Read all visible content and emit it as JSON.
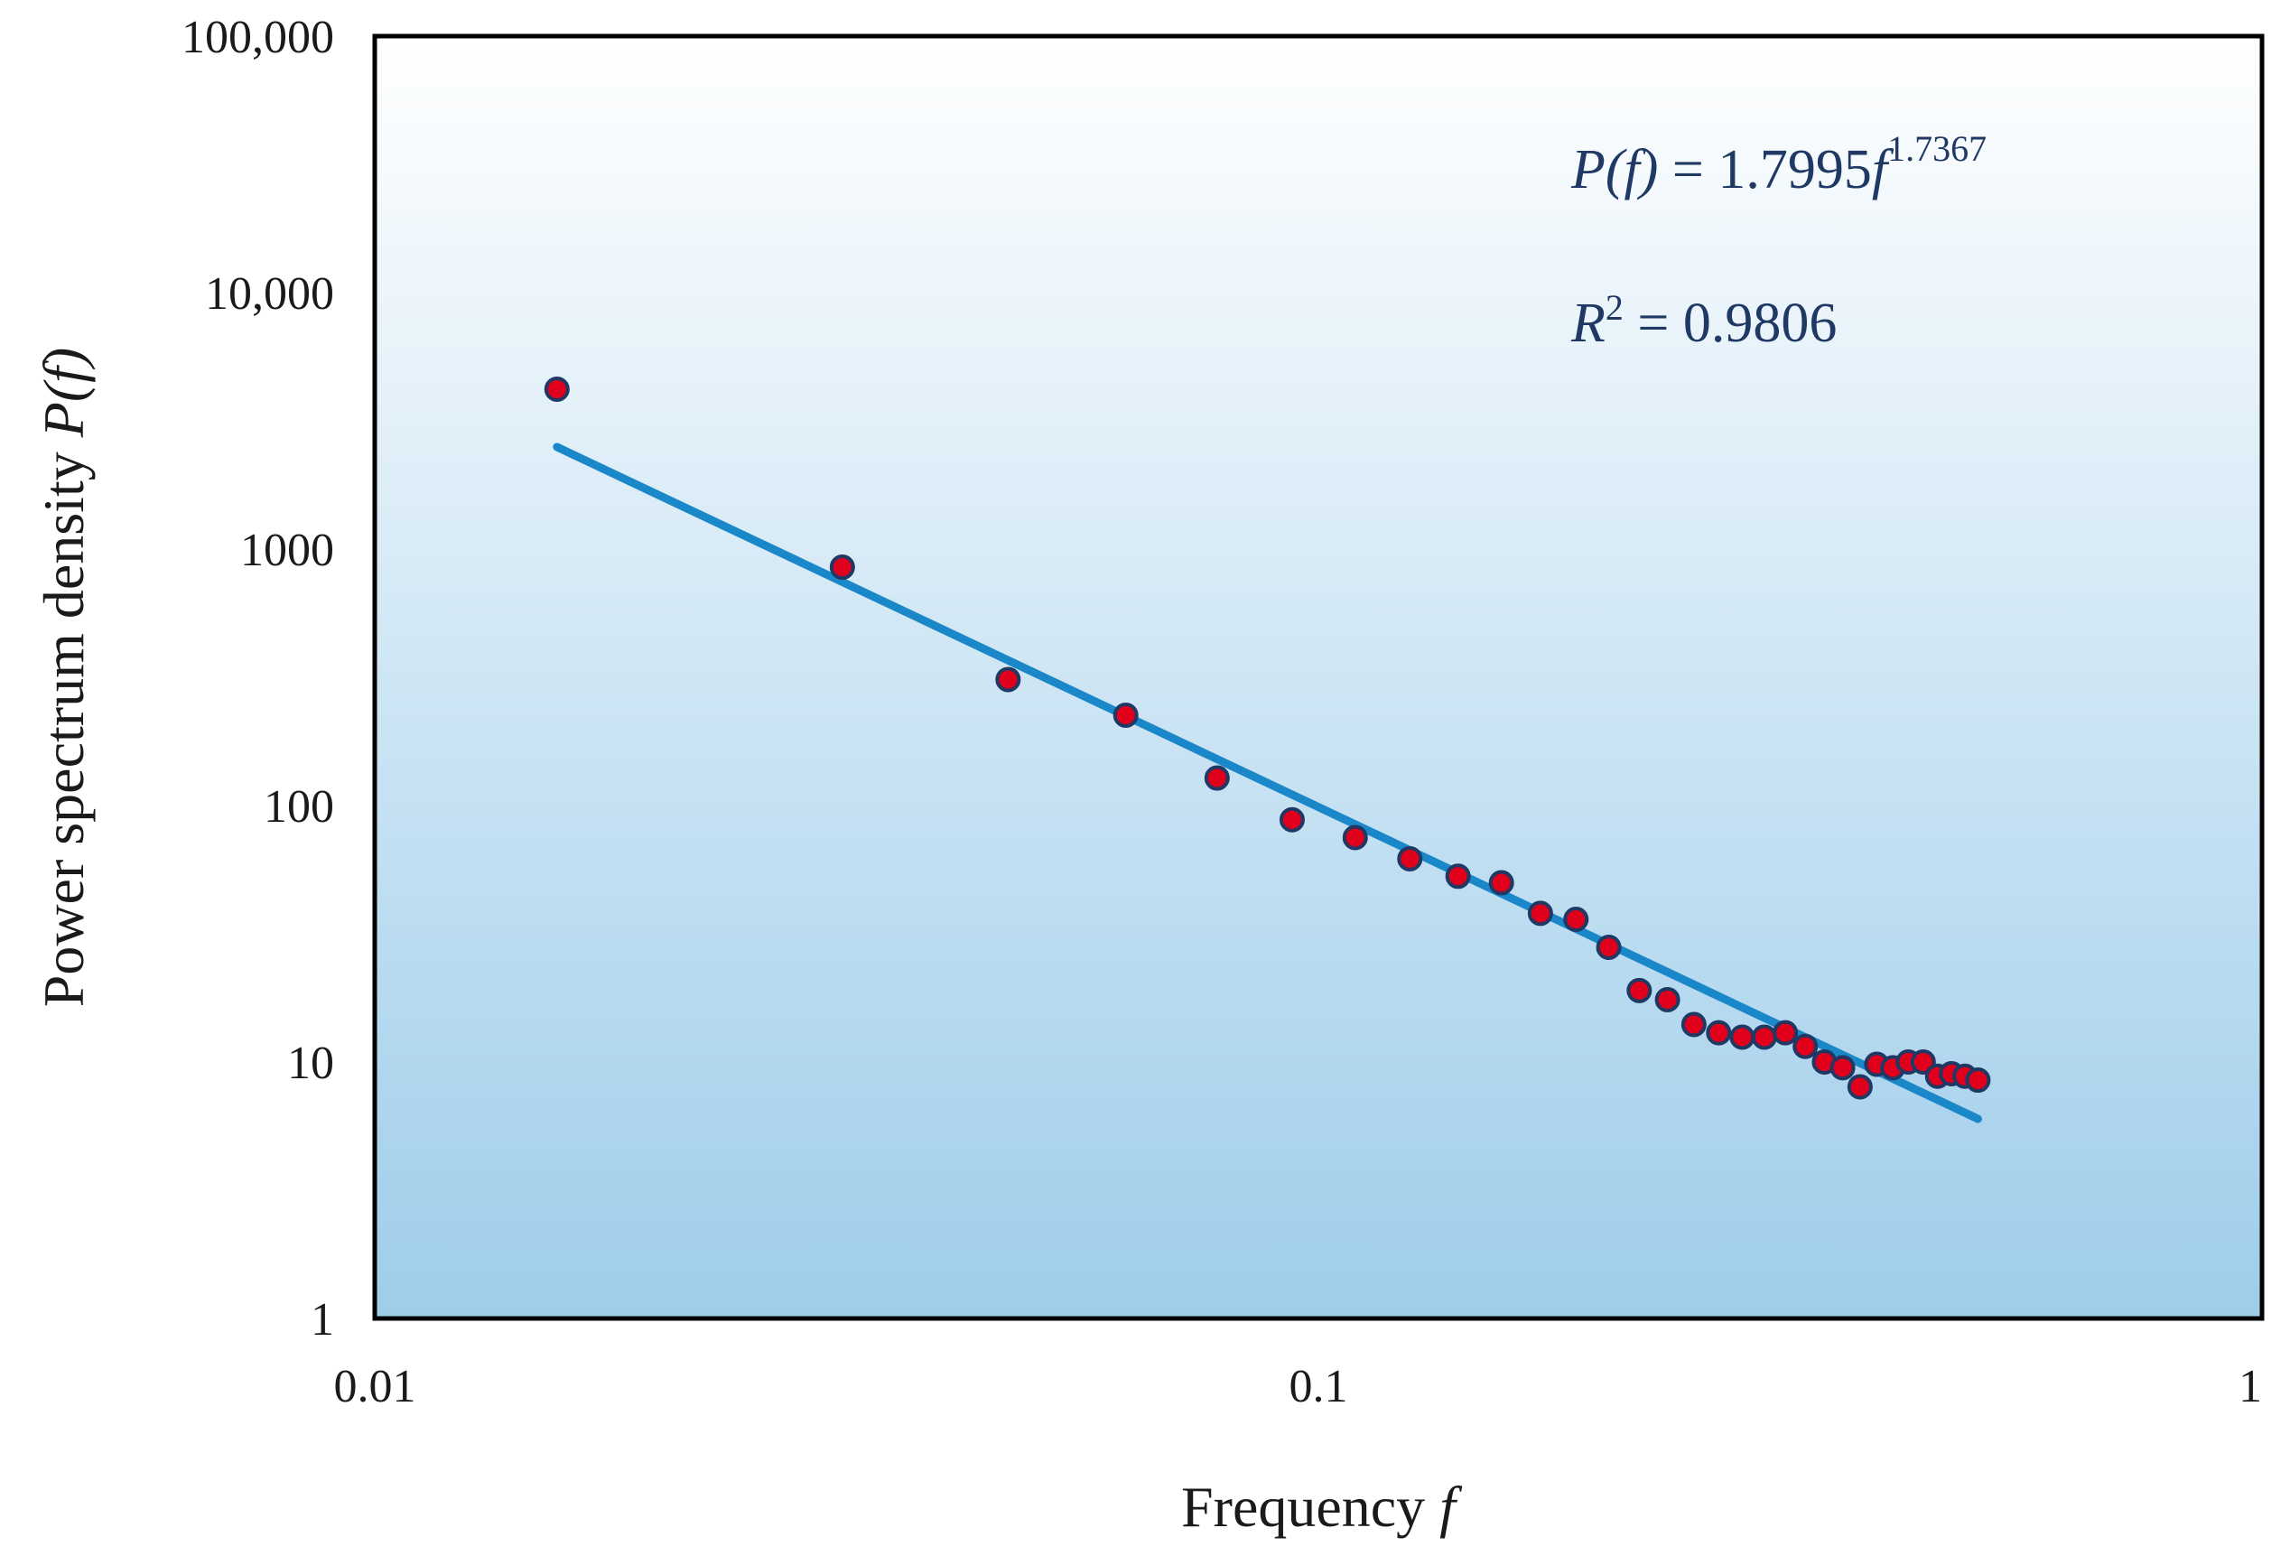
{
  "chart_data": {
    "type": "scatter",
    "x_scale": "log",
    "y_scale": "log",
    "xlim": [
      0.01,
      1
    ],
    "ylim": [
      1,
      100000
    ],
    "x_ticks": [
      {
        "value": 0.01,
        "label": "0.01"
      },
      {
        "value": 0.1,
        "label": "0.1"
      },
      {
        "value": 1,
        "label": "1"
      }
    ],
    "y_ticks": [
      {
        "value": 1,
        "label": "1"
      },
      {
        "value": 10,
        "label": "10"
      },
      {
        "value": 100,
        "label": "100"
      },
      {
        "value": 1000,
        "label": "1000"
      },
      {
        "value": 10000,
        "label": "10,000"
      },
      {
        "value": 100000,
        "label": "100,000"
      }
    ],
    "xlabel": {
      "text": "Frequency ",
      "italic": "f"
    },
    "ylabel": {
      "text": "Power spectrum density ",
      "italic": "P(f)"
    },
    "grid": false,
    "background": {
      "top_color": "#ffffff",
      "bottom_color": "#9ecdea"
    },
    "frame_color": "#000000",
    "points": {
      "fill": "#e0001b",
      "stroke": "#1f3864",
      "x": [
        0.0156,
        0.0313,
        0.0469,
        0.0625,
        0.0781,
        0.0938,
        0.1094,
        0.125,
        0.1406,
        0.1563,
        0.1719,
        0.1875,
        0.2031,
        0.2188,
        0.2344,
        0.25,
        0.2656,
        0.2813,
        0.2969,
        0.3125,
        0.3281,
        0.3438,
        0.3594,
        0.375,
        0.3906,
        0.4063,
        0.4219,
        0.4375,
        0.4531,
        0.4688,
        0.4844,
        0.5
      ],
      "y": [
        4200,
        850,
        310,
        225,
        128,
        88,
        75,
        62,
        53,
        50,
        38,
        36,
        28,
        19,
        17.5,
        14,
        13,
        12.5,
        12.5,
        13,
        11.5,
        10,
        9.5,
        8,
        9.8,
        9.5,
        10,
        10,
        8.8,
        9,
        8.8,
        8.5
      ]
    },
    "fit_line": {
      "color": "#1a87c9",
      "x": [
        0.0156,
        0.5
      ],
      "y": [
        2500,
        6
      ]
    },
    "annotations": {
      "equation": {
        "lhs": "P(f)",
        "eq": " = 1.7995",
        "var": "f",
        "exponent": "1.7367"
      },
      "r_squared": {
        "label": "R",
        "sup": "2",
        "text": " = 0.9806"
      }
    }
  }
}
